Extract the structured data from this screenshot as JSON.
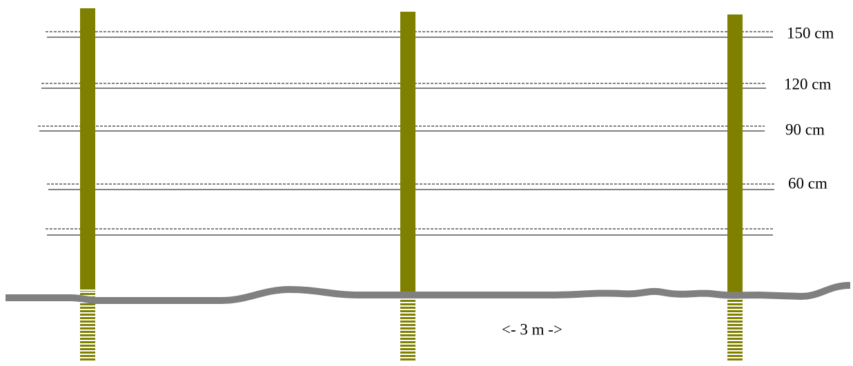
{
  "wire_labels": [
    "150 cm",
    "120 cm",
    "90 cm",
    "60 cm"
  ],
  "span_label": "<- 3 m ->"
}
